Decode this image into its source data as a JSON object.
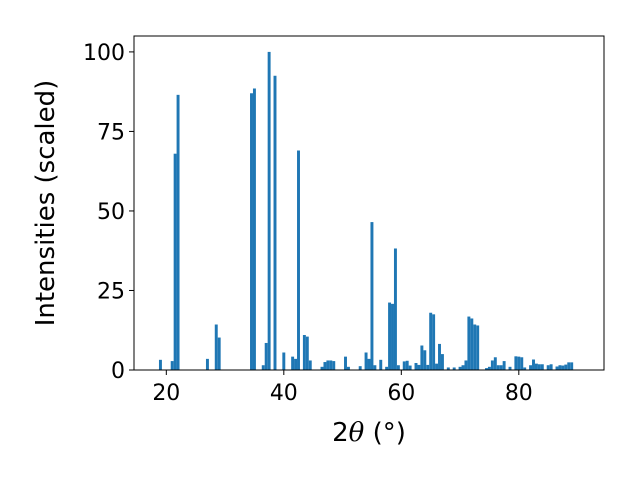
{
  "chart_data": {
    "type": "bar",
    "title": "",
    "xlabel_parts": {
      "pre": "2",
      "theta": "θ",
      "post": " (°)"
    },
    "ylabel": "Intensities (scaled)",
    "xlim": [
      14.5,
      94.5
    ],
    "ylim": [
      0,
      105
    ],
    "xticks": [
      20,
      40,
      60,
      80
    ],
    "yticks": [
      0,
      25,
      50,
      75,
      100
    ],
    "grid": false,
    "legend": "none",
    "bar_color": "#1f77b4",
    "bar_width": 0.5,
    "points": [
      [
        19.0,
        3.2
      ],
      [
        21.0,
        2.8
      ],
      [
        21.5,
        68.0
      ],
      [
        22.0,
        86.5
      ],
      [
        27.0,
        3.5
      ],
      [
        28.5,
        14.3
      ],
      [
        29.0,
        10.2
      ],
      [
        34.5,
        87.0
      ],
      [
        35.0,
        88.5
      ],
      [
        36.5,
        1.5
      ],
      [
        37.0,
        8.5
      ],
      [
        37.5,
        100.0
      ],
      [
        38.5,
        92.5
      ],
      [
        40.0,
        5.5
      ],
      [
        41.5,
        4.2
      ],
      [
        42.0,
        3.5
      ],
      [
        42.5,
        69.0
      ],
      [
        43.5,
        11.0
      ],
      [
        44.0,
        10.5
      ],
      [
        44.5,
        3.0
      ],
      [
        46.5,
        1.0
      ],
      [
        47.0,
        2.5
      ],
      [
        47.5,
        3.0
      ],
      [
        48.0,
        3.0
      ],
      [
        48.5,
        2.8
      ],
      [
        50.5,
        4.2
      ],
      [
        51.0,
        1.0
      ],
      [
        53.0,
        1.2
      ],
      [
        54.0,
        5.5
      ],
      [
        54.5,
        3.5
      ],
      [
        55.0,
        46.5
      ],
      [
        55.5,
        1.5
      ],
      [
        56.5,
        3.2
      ],
      [
        57.5,
        1.0
      ],
      [
        58.0,
        21.2
      ],
      [
        58.5,
        20.8
      ],
      [
        59.0,
        38.2
      ],
      [
        59.5,
        1.5
      ],
      [
        60.5,
        2.7
      ],
      [
        61.0,
        2.9
      ],
      [
        61.5,
        1.4
      ],
      [
        62.5,
        2.2
      ],
      [
        63.0,
        1.6
      ],
      [
        63.5,
        7.7
      ],
      [
        64.0,
        6.2
      ],
      [
        64.5,
        1.6
      ],
      [
        65.0,
        18.0
      ],
      [
        65.5,
        17.5
      ],
      [
        66.0,
        2.0
      ],
      [
        66.5,
        8.2
      ],
      [
        67.0,
        5.0
      ],
      [
        68.0,
        0.8
      ],
      [
        69.0,
        0.8
      ],
      [
        70.0,
        1.0
      ],
      [
        70.5,
        1.5
      ],
      [
        71.0,
        3.0
      ],
      [
        71.5,
        16.8
      ],
      [
        72.0,
        16.2
      ],
      [
        72.5,
        14.3
      ],
      [
        73.0,
        14.0
      ],
      [
        74.5,
        0.6
      ],
      [
        75.0,
        1.0
      ],
      [
        75.5,
        3.0
      ],
      [
        76.0,
        4.0
      ],
      [
        76.5,
        1.5
      ],
      [
        77.0,
        1.5
      ],
      [
        77.5,
        2.8
      ],
      [
        78.5,
        1.0
      ],
      [
        79.5,
        4.3
      ],
      [
        80.0,
        4.2
      ],
      [
        80.5,
        4.0
      ],
      [
        81.0,
        0.8
      ],
      [
        82.0,
        1.5
      ],
      [
        82.5,
        3.3
      ],
      [
        83.0,
        2.0
      ],
      [
        83.5,
        1.8
      ],
      [
        84.0,
        1.8
      ],
      [
        85.0,
        1.5
      ],
      [
        85.5,
        1.8
      ],
      [
        86.5,
        1.1
      ],
      [
        87.0,
        1.5
      ],
      [
        87.5,
        1.4
      ],
      [
        88.0,
        1.7
      ],
      [
        88.5,
        2.4
      ],
      [
        89.0,
        2.4
      ]
    ]
  }
}
